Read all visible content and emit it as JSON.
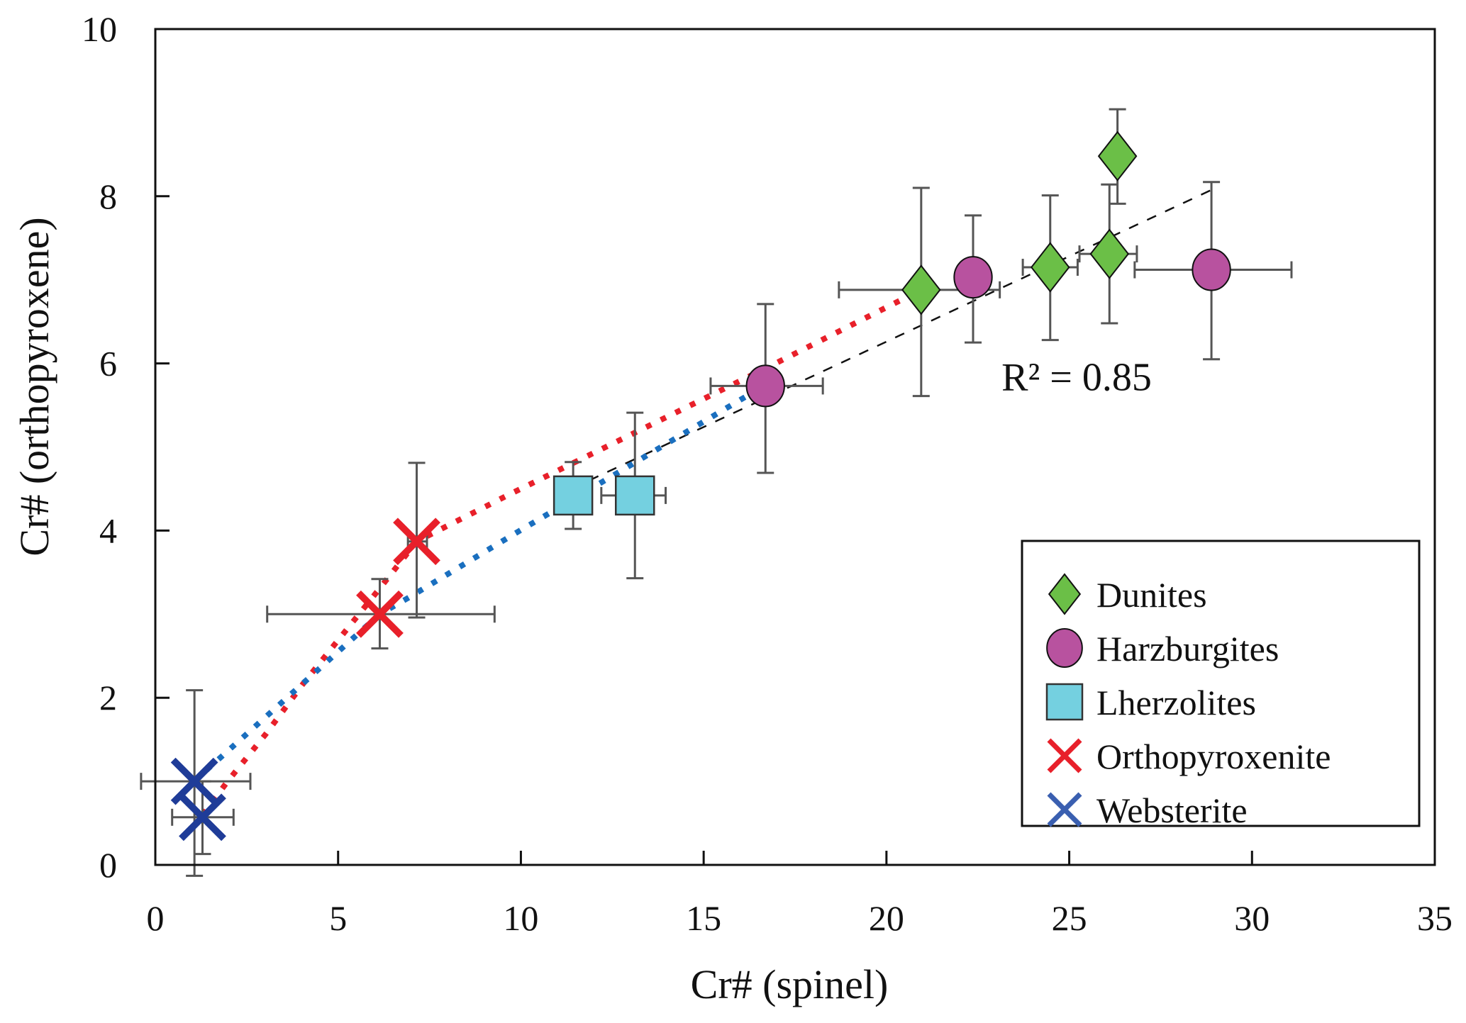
{
  "chart_data": {
    "type": "scatter",
    "title": "",
    "xlabel": "Cr# (spinel)",
    "ylabel": "Cr# (orthopyroxene)",
    "xlim": [
      0,
      35
    ],
    "ylim": [
      0,
      10
    ],
    "xticks": [
      0,
      5,
      10,
      15,
      20,
      25,
      30,
      35
    ],
    "yticks": [
      0,
      2,
      4,
      6,
      8,
      10
    ],
    "grid": false,
    "legend_position": "bottom-right",
    "colors": {
      "Dunites": "#6bbf47",
      "Harzburgites": "#b8529f",
      "Lherzolites": "#74d0e0",
      "Orthopyroxenite": "#e8202a",
      "Websterite": "#1f3c98",
      "errorbar": "#555555",
      "trend_red": "#e8202a",
      "trend_blue": "#1a6fbf"
    },
    "series": [
      {
        "name": "Dunites",
        "marker": "diamond",
        "points": [
          {
            "x": 20.95,
            "y": 6.88,
            "xerr": [
              18.7,
              23.1
            ],
            "yerr": [
              5.61,
              8.1
            ]
          },
          {
            "x": 24.48,
            "y": 7.15,
            "xerr": [
              23.73,
              25.23
            ],
            "yerr": [
              6.28,
              8.01
            ]
          },
          {
            "x": 26.1,
            "y": 7.31,
            "xerr": [
              25.28,
              26.85
            ],
            "yerr": [
              6.48,
              8.14
            ]
          },
          {
            "x": 26.32,
            "y": 8.48,
            "xerr": null,
            "yerr": [
              7.91,
              9.04
            ]
          }
        ]
      },
      {
        "name": "Harzburgites",
        "marker": "circle",
        "points": [
          {
            "x": 16.69,
            "y": 5.73,
            "xerr": [
              15.19,
              18.26
            ],
            "yerr": [
              4.69,
              6.71
            ]
          },
          {
            "x": 22.37,
            "y": 7.03,
            "xerr": null,
            "yerr": [
              6.25,
              7.77
            ]
          },
          {
            "x": 28.89,
            "y": 7.12,
            "xerr": [
              26.79,
              31.08
            ],
            "yerr": [
              6.05,
              8.17
            ]
          }
        ]
      },
      {
        "name": "Lherzolites",
        "marker": "square",
        "points": [
          {
            "x": 11.43,
            "y": 4.42,
            "xerr": null,
            "yerr": [
              4.02,
              4.82
            ]
          },
          {
            "x": 13.12,
            "y": 4.42,
            "xerr": [
              12.2,
              13.96
            ],
            "yerr": [
              3.43,
              5.41
            ]
          }
        ]
      },
      {
        "name": "Orthopyroxenite",
        "marker": "x",
        "points": [
          {
            "x": 7.15,
            "y": 3.87,
            "xerr": [
              6.91,
              7.43
            ],
            "yerr": [
              2.96,
              4.81
            ]
          },
          {
            "x": 6.14,
            "y": 3.0,
            "xerr": [
              3.06,
              9.28
            ],
            "yerr": [
              2.59,
              3.42
            ]
          }
        ]
      },
      {
        "name": "Websterite",
        "marker": "x",
        "points": [
          {
            "x": 1.07,
            "y": 1.0,
            "xerr": [
              -0.39,
              2.6
            ],
            "yerr": [
              -0.13,
              2.09
            ]
          },
          {
            "x": 1.29,
            "y": 0.57,
            "xerr": [
              0.46,
              2.14
            ],
            "yerr": [
              0.13,
              1.0
            ]
          }
        ]
      }
    ],
    "trendlines": [
      {
        "name": "linear-fit",
        "style": "dashed",
        "color": "#111111",
        "points": [
          [
            11.38,
            4.5
          ],
          [
            28.96,
            8.09
          ]
        ],
        "label": "R² = 0.85"
      },
      {
        "name": "orthopyroxenite-trend",
        "style": "dotted",
        "color": "#e8202a",
        "points": [
          [
            1.3,
            0.6
          ],
          [
            1.96,
            0.99
          ],
          [
            3.03,
            1.57
          ],
          [
            4.03,
            2.16
          ],
          [
            6.16,
            3.32
          ],
          [
            7.15,
            3.87
          ],
          [
            9.72,
            4.44
          ],
          [
            16.83,
            5.97
          ],
          [
            20.95,
            6.88
          ]
        ]
      },
      {
        "name": "websterite-trend",
        "style": "dotted",
        "color": "#1a6fbf",
        "points": [
          [
            1.07,
            1.0
          ],
          [
            1.44,
            1.15
          ],
          [
            3.12,
            1.81
          ],
          [
            6.14,
            3.0
          ],
          [
            6.94,
            3.2
          ],
          [
            9.82,
            3.96
          ],
          [
            12.76,
            4.72
          ],
          [
            16.64,
            5.73
          ]
        ]
      }
    ],
    "annotations": [
      {
        "text": "R² = 0.85",
        "x": 24.7,
        "y": 5.85
      }
    ]
  }
}
